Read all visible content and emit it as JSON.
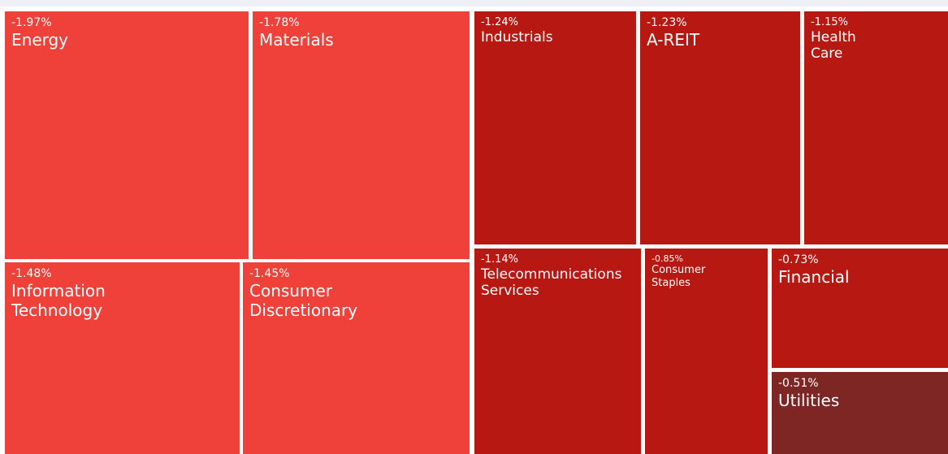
{
  "chart_data": {
    "type": "treemap",
    "categories": [
      "Energy",
      "Materials",
      "Information Technology",
      "Consumer Discretionary",
      "Industrials",
      "A-REIT",
      "Health Care",
      "Telecommunications Services",
      "Consumer Staples",
      "Financial",
      "Utilities"
    ],
    "values": [
      -1.97,
      -1.78,
      -1.48,
      -1.45,
      -1.24,
      -1.23,
      -1.15,
      -1.14,
      -0.85,
      -0.73,
      -0.51
    ],
    "value_labels": [
      "-1.97%",
      "-1.78%",
      "-1.48%",
      "-1.45%",
      "-1.24%",
      "-1.23%",
      "-1.15%",
      "-1.14%",
      "-0.85%",
      "-0.73%",
      "-0.51%"
    ],
    "colors": [
      "#ef4139",
      "#ef4139",
      "#ef4139",
      "#ef4139",
      "#b81812",
      "#b81812",
      "#b81812",
      "#b81812",
      "#b81812",
      "#b81812",
      "#7e2624"
    ]
  }
}
